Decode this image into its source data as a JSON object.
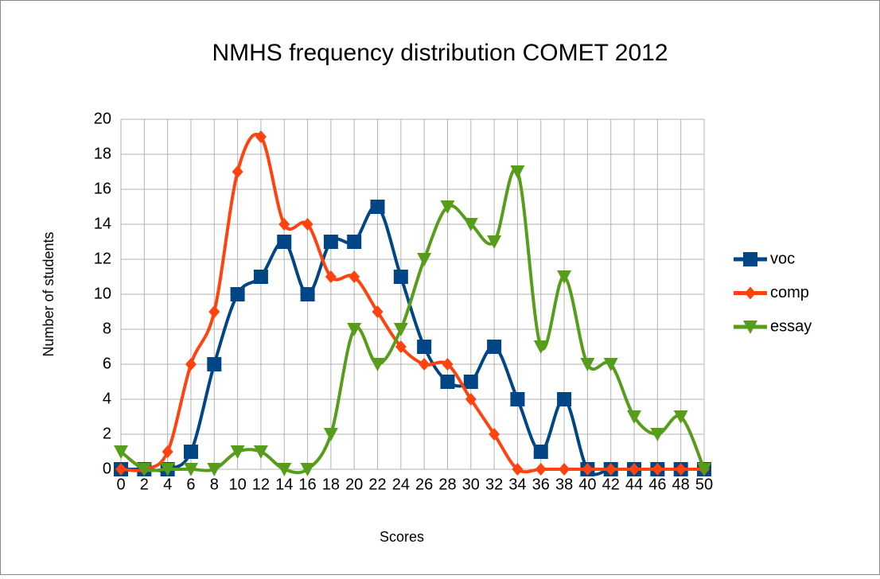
{
  "chart_data": {
    "type": "line",
    "title": "NMHS frequency distribution COMET 2012",
    "x_label": "Scores",
    "y_label": "Number of students",
    "categories": [
      "0",
      "2",
      "4",
      "6",
      "8",
      "10",
      "12",
      "14",
      "16",
      "18",
      "20",
      "22",
      "24",
      "26",
      "28",
      "30",
      "32",
      "34",
      "36",
      "38",
      "40",
      "42",
      "44",
      "46",
      "48",
      "50"
    ],
    "series": [
      {
        "name": "voc",
        "color": "#004586",
        "marker": "square",
        "values": [
          0,
          0,
          0,
          1,
          6,
          10,
          11,
          13,
          10,
          13,
          13,
          15,
          11,
          7,
          5,
          5,
          7,
          4,
          1,
          4,
          0,
          0,
          0,
          0,
          0,
          0
        ]
      },
      {
        "name": "comp",
        "color": "#ff420e",
        "marker": "diamond",
        "values": [
          0,
          0,
          1,
          6,
          9,
          17,
          19,
          14,
          14,
          11,
          11,
          9,
          7,
          6,
          6,
          4,
          2,
          0,
          0,
          0,
          0,
          0,
          0,
          0,
          0,
          0
        ]
      },
      {
        "name": "essay",
        "color": "#579d1c",
        "marker": "triangle-down",
        "values": [
          1,
          0,
          0,
          0,
          0,
          1,
          1,
          0,
          0,
          2,
          8,
          6,
          8,
          12,
          15,
          14,
          13,
          17,
          7,
          11,
          6,
          6,
          3,
          2,
          3,
          0
        ]
      }
    ],
    "ylim": [
      0,
      20
    ],
    "yticks": [
      0,
      2,
      4,
      6,
      8,
      10,
      12,
      14,
      16,
      18,
      20
    ],
    "grid": true,
    "legend": "right",
    "smooth": true
  }
}
